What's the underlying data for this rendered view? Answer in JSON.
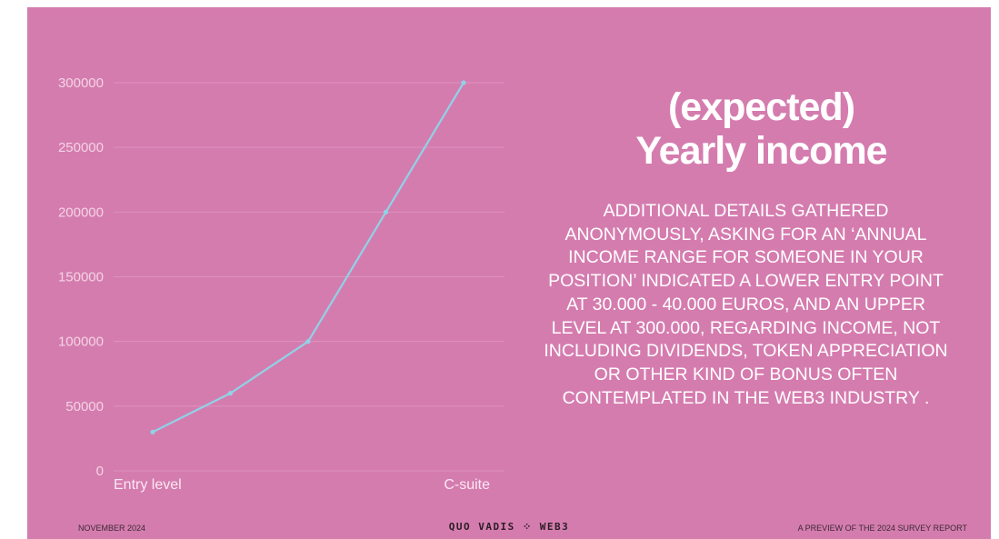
{
  "chart_data": {
    "type": "line",
    "x": [
      "Entry level",
      "",
      "",
      "",
      "C-suite"
    ],
    "series": [
      {
        "values": [
          30000,
          60000,
          100000,
          200000,
          300000
        ]
      }
    ],
    "yticks": [
      0,
      50000,
      100000,
      150000,
      200000,
      250000,
      300000
    ],
    "ylim": [
      0,
      300000
    ],
    "grid": true,
    "line_color": "#8fd3e6",
    "gridline_color": "#dd92bc"
  },
  "headline": {
    "line1": "(expected)",
    "line2": "Yearly income"
  },
  "body_lines": [
    "ADDITIONAL DETAILS GATHERED",
    "ANONYMOUSLY, ASKING FOR AN ‘ANNUAL",
    "INCOME RANGE FOR SOMEONE IN YOUR",
    "POSITION’ INDICATED A LOWER ENTRY POINT",
    "AT 30.000 - 40.000 EUROS, AND AN UPPER",
    "LEVEL AT 300.000, REGARDING INCOME, NOT",
    "INCLUDING DIVIDENDS, TOKEN APPRECIATION",
    "OR OTHER KIND OF BONUS OFTEN",
    "CONTEMPLATED IN THE WEB3 INDUSTRY  ."
  ],
  "footer": {
    "left": "NOVEMBER 2024",
    "brand_left": "QUO VADIS",
    "brand_mark": "⁘",
    "brand_right": "WEB3",
    "right": "A PREVIEW OF THE 2024 SURVEY REPORT"
  },
  "colors": {
    "background": "#d57caf",
    "text": "#ffffff"
  }
}
